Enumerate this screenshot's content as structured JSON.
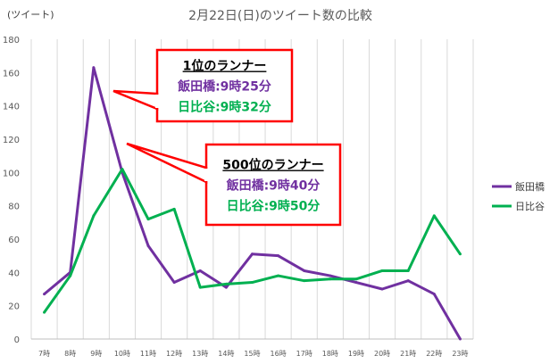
{
  "chart_data": {
    "type": "line",
    "title": "2月22日(日)のツイート数の比較",
    "ylabel": "(ツイート)",
    "xlabel": "",
    "ylim": [
      0,
      180
    ],
    "yticks": [
      0,
      20,
      40,
      60,
      80,
      100,
      120,
      140,
      160,
      180
    ],
    "grid": "vertical",
    "legend_position": "right",
    "categories": [
      "7時",
      "8時",
      "9時",
      "10時",
      "11時",
      "12時",
      "13時",
      "14時",
      "15時",
      "16時",
      "17時",
      "18時",
      "19時",
      "20時",
      "21時",
      "22時",
      "23時"
    ],
    "x_index": [
      0,
      1,
      1.9,
      3,
      4,
      5,
      6,
      7,
      8,
      9,
      10,
      11,
      12,
      13,
      14,
      15,
      16
    ],
    "series": [
      {
        "name": "飯田橋",
        "color": "#7030a0",
        "values": [
          27,
          40,
          163,
          100,
          56,
          34,
          41,
          31,
          51,
          50,
          41,
          38,
          34,
          30,
          35,
          27,
          0
        ]
      },
      {
        "name": "日比谷",
        "color": "#00b050",
        "values": [
          16,
          38,
          74,
          102,
          72,
          78,
          31,
          33,
          34,
          38,
          35,
          36,
          36,
          41,
          41,
          74,
          51
        ]
      }
    ],
    "annotations": [
      {
        "lines": [
          {
            "text": "1位のランナー",
            "color": "#000000",
            "underline": true
          },
          {
            "text": "飯田橋:9時25分",
            "color": "#7030a0",
            "underline": false
          },
          {
            "text": "日比谷:9時32分",
            "color": "#00b050",
            "underline": false
          }
        ]
      },
      {
        "lines": [
          {
            "text": "500位のランナー",
            "color": "#000000",
            "underline": true
          },
          {
            "text": "飯田橋:9時40分",
            "color": "#7030a0",
            "underline": false
          },
          {
            "text": "日比谷:9時50分",
            "color": "#00b050",
            "underline": false
          }
        ]
      }
    ]
  }
}
